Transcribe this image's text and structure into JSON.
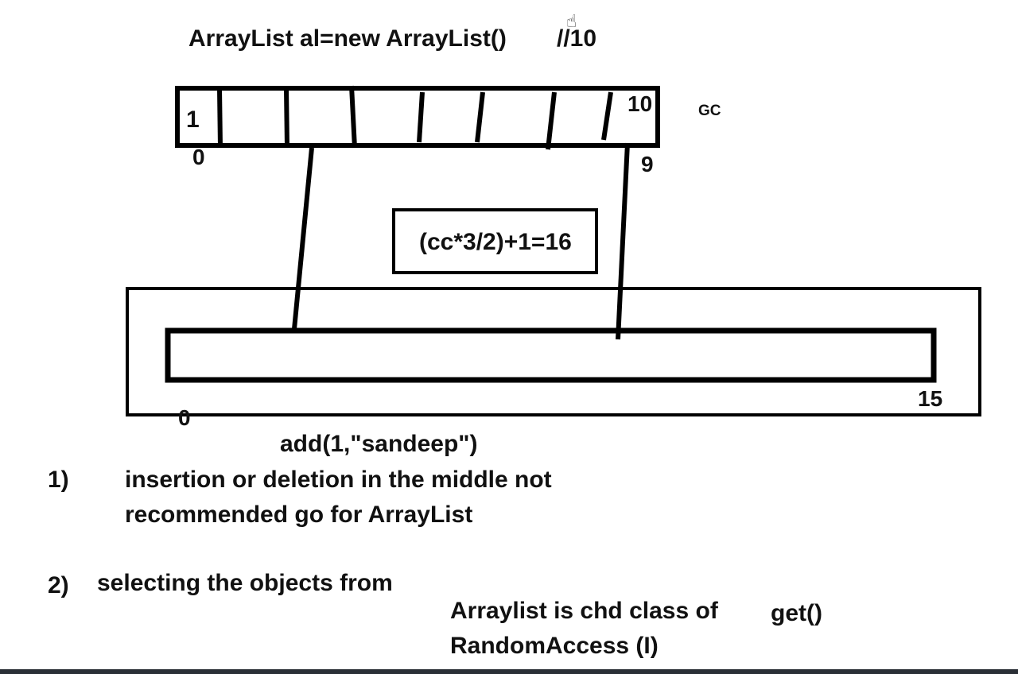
{
  "code_line": "ArrayList al=new ArrayList()",
  "code_comment": "//10",
  "old_array": {
    "first_value": "1",
    "start_index": "0",
    "end_index": "9",
    "capacity_label": "10",
    "gc_label": "GC"
  },
  "formula": "(cc*3/2)+1=16",
  "new_array": {
    "start_index": "0",
    "end_index": "15"
  },
  "method_call": "add(1,\"sandeep\")",
  "points": [
    {
      "number": "1)",
      "line1": "insertion or deletion in the middle not",
      "line2": "recommended go for ArrayList"
    },
    {
      "number": "2)",
      "line1": "selecting the objects from"
    }
  ],
  "note": {
    "line1": "Arraylist is chd class of",
    "line2": "RandomAccess (I)",
    "method": "get()"
  },
  "cursor_icon": "hand-pointer-icon"
}
